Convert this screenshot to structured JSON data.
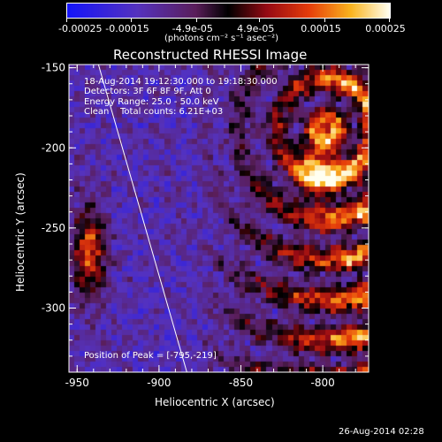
{
  "colorbar": {
    "ticks": [
      "-0.00025",
      "-0.00015",
      "-4.9e-05",
      "4.9e-05",
      "0.00015",
      "0.00025"
    ],
    "tick_values": [
      -0.00025,
      -0.00015,
      -4.9e-05,
      4.9e-05,
      0.00015,
      0.00025
    ],
    "units_label": "(photons cm⁻² s⁻¹ asec⁻²)",
    "range": [
      -0.00025,
      0.00025
    ],
    "colormap": "rhessi-blue-purple-red-yellow-white"
  },
  "title": "Reconstructed RHESSI Image",
  "info": {
    "time_range": "18-Aug-2014 19:12:30.000 to 19:18:30.000",
    "detectors": "Detectors: 3F 6F 8F 9F, Att 0",
    "energy": "Energy Range: 25.0 - 50.0 keV",
    "clean": "Clean",
    "counts": "Total counts: 6.21E+03",
    "peak": "Position of Peak = [-795,-219]"
  },
  "footer": {
    "timestamp": "26-Aug-2014 02:28"
  },
  "chart_data": {
    "type": "heatmap",
    "title": "Reconstructed RHESSI Image",
    "xlabel": "Heliocentric X (arcsec)",
    "ylabel": "Heliocentric Y (arcsec)",
    "xlim": [
      -955,
      -772
    ],
    "ylim": [
      -340,
      -148
    ],
    "x_ticks": [
      -950,
      -900,
      -850,
      -800
    ],
    "x_tick_labels": [
      "-950",
      "-900",
      "-850",
      "-800"
    ],
    "y_ticks": [
      -150,
      -200,
      -250,
      -300
    ],
    "y_tick_labels": [
      "-150",
      "-200",
      "-250",
      "-300"
    ],
    "peak_position": [
      -795,
      -219
    ],
    "limb_line": {
      "x": [
        -937,
        -883
      ],
      "y": [
        -148,
        -340
      ]
    },
    "colors": {
      "axis": "#ffffff",
      "background": "#000000",
      "limb": "#ffffff"
    }
  }
}
